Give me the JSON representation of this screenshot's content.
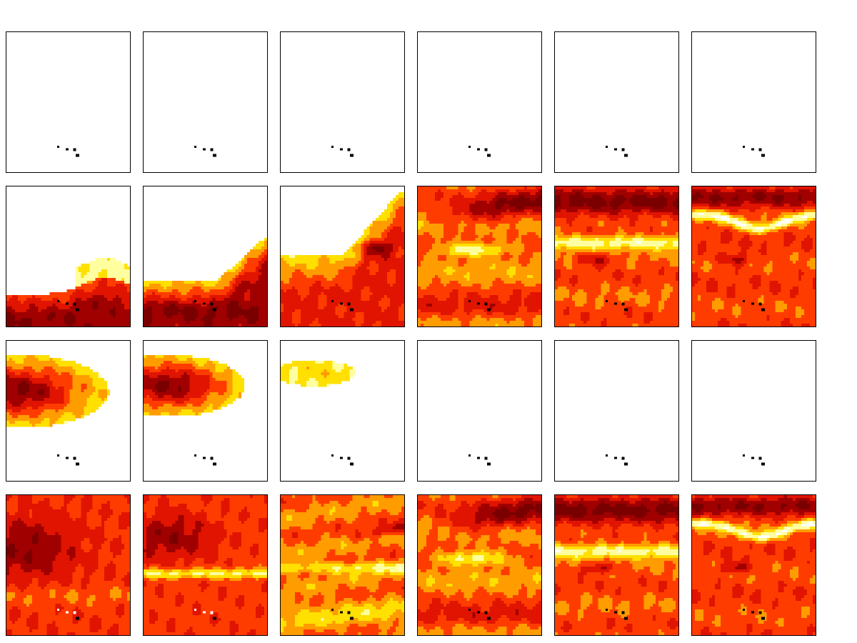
{
  "chart_data": {
    "type": "heatmap",
    "rows": 4,
    "cols": 6,
    "colormap": [
      "#ffffff",
      "#ffffa0",
      "#ffe000",
      "#ff9c00",
      "#ff3c00",
      "#e01400",
      "#a00000",
      "#7a0000"
    ],
    "colors": {
      "frame": "#000000",
      "island_markers": "#000000",
      "island_markers_on_dark": "#ffffff"
    },
    "panels": [
      {
        "row": 0,
        "col": 0,
        "field": "blank"
      },
      {
        "row": 0,
        "col": 1,
        "field": "blank"
      },
      {
        "row": 0,
        "col": 2,
        "field": "blank"
      },
      {
        "row": 0,
        "col": 3,
        "field": "blank"
      },
      {
        "row": 0,
        "col": 4,
        "field": "blank"
      },
      {
        "row": 0,
        "col": 5,
        "field": "blank"
      },
      {
        "row": 1,
        "col": 0,
        "field": "front-low"
      },
      {
        "row": 1,
        "col": 1,
        "field": "front-mid"
      },
      {
        "row": 1,
        "col": 2,
        "field": "front-rising"
      },
      {
        "row": 1,
        "col": 3,
        "field": "filled-streak"
      },
      {
        "row": 1,
        "col": 4,
        "field": "filled-band"
      },
      {
        "row": 1,
        "col": 5,
        "field": "filled-arc"
      },
      {
        "row": 2,
        "col": 0,
        "field": "blob-large"
      },
      {
        "row": 2,
        "col": 1,
        "field": "blob-medium"
      },
      {
        "row": 2,
        "col": 2,
        "field": "blob-faint"
      },
      {
        "row": 2,
        "col": 3,
        "field": "blank"
      },
      {
        "row": 2,
        "col": 4,
        "field": "blank"
      },
      {
        "row": 2,
        "col": 5,
        "field": "blank"
      },
      {
        "row": 3,
        "col": 0,
        "field": "full-dark"
      },
      {
        "row": 3,
        "col": 1,
        "field": "full-banded"
      },
      {
        "row": 3,
        "col": 2,
        "field": "full-mixed"
      },
      {
        "row": 3,
        "col": 3,
        "field": "filled-streak"
      },
      {
        "row": 3,
        "col": 4,
        "field": "filled-band"
      },
      {
        "row": 3,
        "col": 5,
        "field": "filled-arc"
      }
    ]
  }
}
